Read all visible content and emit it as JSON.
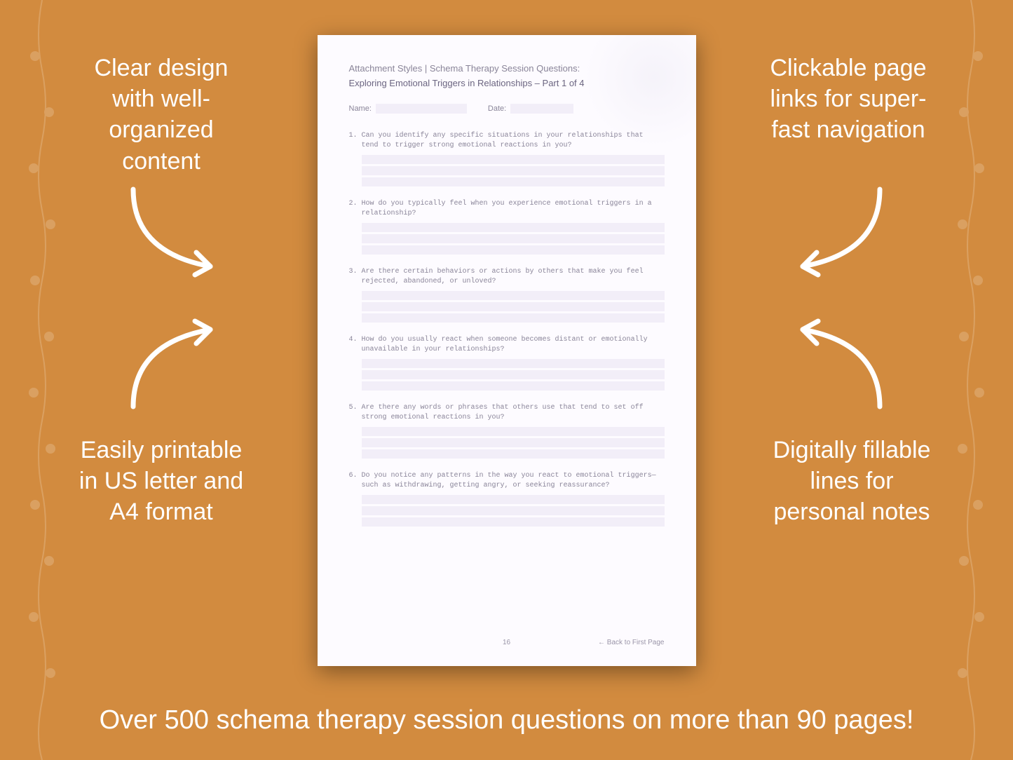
{
  "background_color": "#d28b3f",
  "page_background": "#fdfbff",
  "answer_line_color": "#f2eef8",
  "text_muted_color": "#8a8599",
  "callout_color": "#ffffff",
  "callouts": {
    "top_left": "Clear design with well-organized content",
    "top_right": "Clickable page links for super-fast navigation",
    "bottom_left": "Easily printable in US letter and A4 format",
    "bottom_right": "Digitally fillable lines for personal notes"
  },
  "bottom_text": "Over 500 schema therapy session questions on more than 90 pages!",
  "page": {
    "heading": "Attachment Styles | Schema Therapy Session Questions:",
    "subheading": "Exploring Emotional Triggers in Relationships  – Part 1 of 4",
    "name_label": "Name:",
    "date_label": "Date:",
    "questions": [
      {
        "num": "1.",
        "text": "Can you identify any specific situations in your relationships that tend to trigger strong emotional reactions in you?"
      },
      {
        "num": "2.",
        "text": "How do you typically feel when you experience emotional triggers in a relationship?"
      },
      {
        "num": "3.",
        "text": "Are there certain behaviors or actions by others that make you feel rejected, abandoned, or unloved?"
      },
      {
        "num": "4.",
        "text": "How do you usually react when someone becomes distant or emotionally unavailable in your relationships?"
      },
      {
        "num": "5.",
        "text": "Are there any words or phrases that others use that tend to set off strong emotional reactions in you?"
      },
      {
        "num": "6.",
        "text": "Do you notice any patterns in the way you react to emotional triggers—such as withdrawing, getting angry, or seeking reassurance?"
      }
    ],
    "page_number": "16",
    "back_link": "← Back to First Page"
  }
}
